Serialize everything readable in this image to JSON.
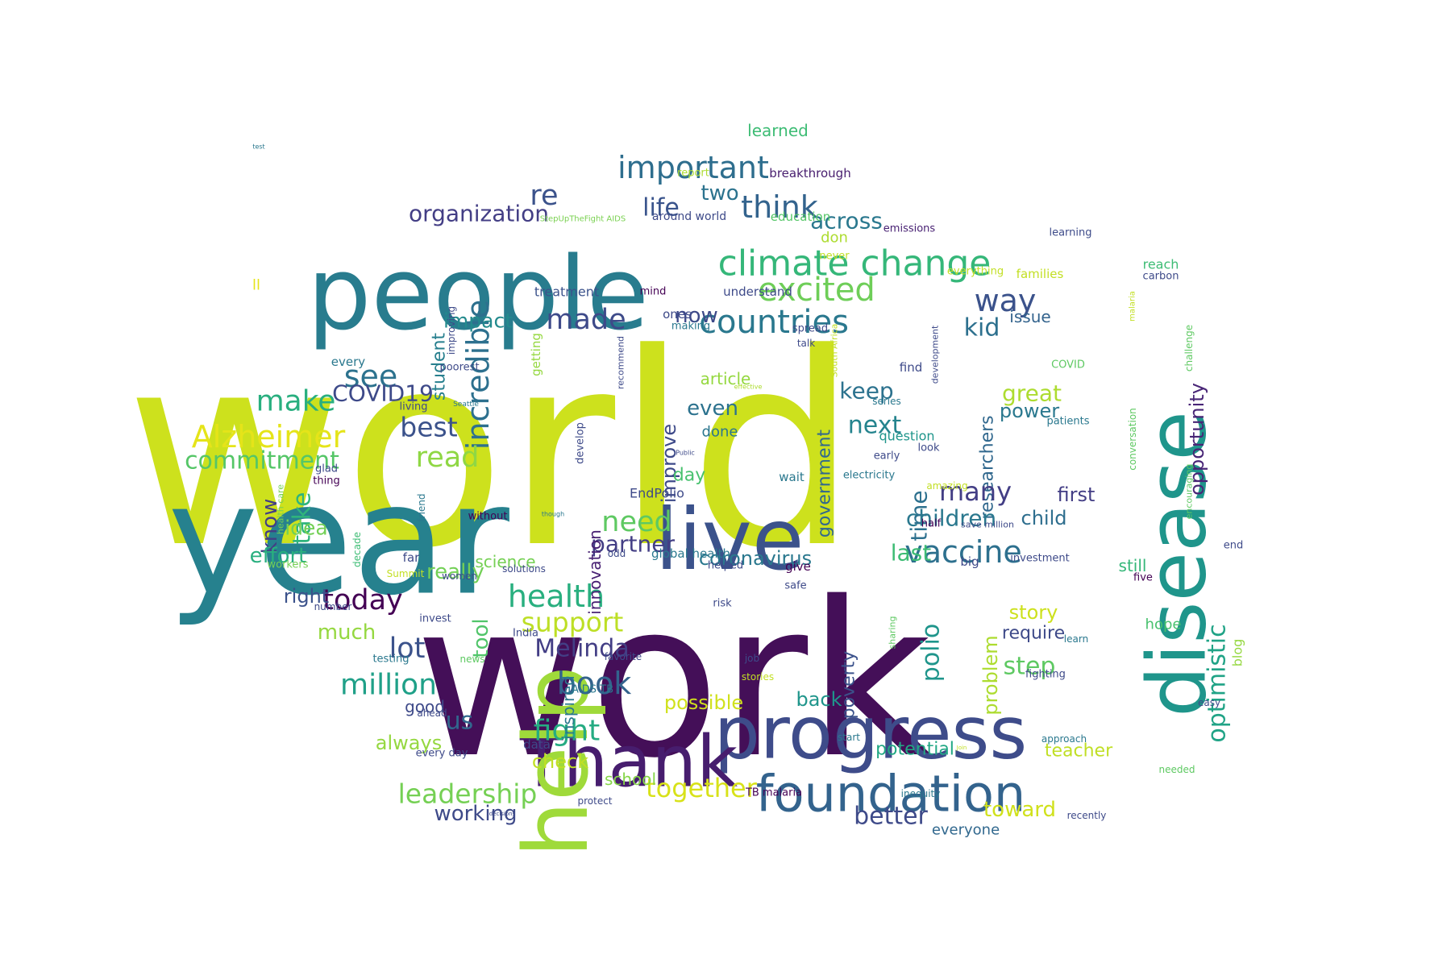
{
  "words": [
    {
      "text": "world",
      "color": "#cde11d"
    },
    {
      "text": "work",
      "color": "#440f58"
    },
    {
      "text": "year",
      "color": "#26818e"
    },
    {
      "text": "people",
      "color": "#287c8e"
    },
    {
      "text": "disease",
      "color": "#1f958b"
    },
    {
      "text": "live",
      "color": "#3b528b"
    },
    {
      "text": "progress",
      "color": "#3e4c8a"
    },
    {
      "text": "Thank",
      "color": "#471d6e"
    },
    {
      "text": "help",
      "color": "#9fda3a"
    },
    {
      "text": "foundation",
      "color": "#33638d"
    },
    {
      "text": "climate change",
      "color": "#35b779"
    },
    {
      "text": "important",
      "color": "#2e6e8e"
    },
    {
      "text": "countries",
      "color": "#2a788e"
    },
    {
      "text": "excited",
      "color": "#6ece58"
    },
    {
      "text": "incredible",
      "color": "#2d708e"
    },
    {
      "text": "think",
      "color": "#33638d"
    },
    {
      "text": "organization",
      "color": "#433e85"
    },
    {
      "text": "life",
      "color": "#3a548c"
    },
    {
      "text": "re",
      "color": "#3b528b"
    },
    {
      "text": "made",
      "color": "#3e4a89"
    },
    {
      "text": "impact",
      "color": "#238a8d"
    },
    {
      "text": "two",
      "color": "#2c738e"
    },
    {
      "text": "across",
      "color": "#2a788e"
    },
    {
      "text": "way",
      "color": "#3b528b"
    },
    {
      "text": "kid",
      "color": "#2d708e"
    },
    {
      "text": "now",
      "color": "#3e4a89"
    },
    {
      "text": "see",
      "color": "#2c728e"
    },
    {
      "text": "make",
      "color": "#29af7f"
    },
    {
      "text": "COVID19",
      "color": "#3e4a89"
    },
    {
      "text": "Alzheimer",
      "color": "#e5e419"
    },
    {
      "text": "commitment",
      "color": "#55c667"
    },
    {
      "text": "best",
      "color": "#3b528b"
    },
    {
      "text": "read",
      "color": "#8fd744"
    },
    {
      "text": "student",
      "color": "#277f8e"
    },
    {
      "text": "government",
      "color": "#31688e"
    },
    {
      "text": "keep",
      "color": "#2c728e"
    },
    {
      "text": "next",
      "color": "#25848e"
    },
    {
      "text": "researchers",
      "color": "#31688e"
    },
    {
      "text": "opportunity",
      "color": "#482576"
    },
    {
      "text": "great",
      "color": "#addc30"
    },
    {
      "text": "power",
      "color": "#2a788e"
    },
    {
      "text": "issue",
      "color": "#33638d"
    },
    {
      "text": "even",
      "color": "#2c728e"
    },
    {
      "text": "article",
      "color": "#95d840"
    },
    {
      "text": "done",
      "color": "#2a768e"
    },
    {
      "text": "improve",
      "color": "#3e4a89"
    },
    {
      "text": "time",
      "color": "#2d708e"
    },
    {
      "text": "many",
      "color": "#433e85"
    },
    {
      "text": "first",
      "color": "#433e85"
    },
    {
      "text": "children",
      "color": "#2a788e"
    },
    {
      "text": "child",
      "color": "#2e6e8e"
    },
    {
      "text": "vaccine",
      "color": "#2d708e"
    },
    {
      "text": "last",
      "color": "#3dbc74"
    },
    {
      "text": "need",
      "color": "#5ec962"
    },
    {
      "text": "partner",
      "color": "#433e85"
    },
    {
      "text": "take",
      "color": "#2fb47c"
    },
    {
      "text": "know",
      "color": "#433e85"
    },
    {
      "text": "idea",
      "color": "#73d056"
    },
    {
      "text": "effort",
      "color": "#29af7f"
    },
    {
      "text": "really",
      "color": "#73d056"
    },
    {
      "text": "science",
      "color": "#75d054"
    },
    {
      "text": "day",
      "color": "#48c16e"
    },
    {
      "text": "coronavirus",
      "color": "#2a788e"
    },
    {
      "text": "health",
      "color": "#29af7f"
    },
    {
      "text": "support",
      "color": "#bddf26"
    },
    {
      "text": "today",
      "color": "#440154"
    },
    {
      "text": "right",
      "color": "#3b528b"
    },
    {
      "text": "lot",
      "color": "#3b528b"
    },
    {
      "text": "tool",
      "color": "#51c56a"
    },
    {
      "text": "Melinda",
      "color": "#433e85"
    },
    {
      "text": "book",
      "color": "#33638d"
    },
    {
      "text": "million",
      "color": "#1fa088"
    },
    {
      "text": "much",
      "color": "#95d840"
    },
    {
      "text": "us",
      "color": "#31688e"
    },
    {
      "text": "fight",
      "color": "#25ab82"
    },
    {
      "text": "always",
      "color": "#95d840"
    },
    {
      "text": "check",
      "color": "#c0df25"
    },
    {
      "text": "leadership",
      "color": "#75d054"
    },
    {
      "text": "working",
      "color": "#3e4a89"
    },
    {
      "text": "together",
      "color": "#d8e219"
    },
    {
      "text": "school",
      "color": "#86d549"
    },
    {
      "text": "better",
      "color": "#3e4a89"
    },
    {
      "text": "toward",
      "color": "#d0e11c"
    },
    {
      "text": "everyone",
      "color": "#31688e"
    },
    {
      "text": "teacher",
      "color": "#c0df25"
    },
    {
      "text": "optimistic",
      "color": "#20a386"
    },
    {
      "text": "polio",
      "color": "#1f958b"
    },
    {
      "text": "problem",
      "color": "#addc30"
    },
    {
      "text": "poverty",
      "color": "#3b528b"
    },
    {
      "text": "story",
      "color": "#cde11d"
    },
    {
      "text": "step",
      "color": "#5ec962"
    },
    {
      "text": "require",
      "color": "#3e4a89"
    },
    {
      "text": "potential",
      "color": "#22a884"
    },
    {
      "text": "possible",
      "color": "#d0e11c"
    },
    {
      "text": "back",
      "color": "#1f958b"
    },
    {
      "text": "good",
      "color": "#3e4a89"
    },
    {
      "text": "innovation",
      "color": "#482173"
    },
    {
      "text": "inspired",
      "color": "#2a788e"
    },
    {
      "text": "still",
      "color": "#35b779"
    },
    {
      "text": "hope",
      "color": "#48c16e"
    },
    {
      "text": "blog",
      "color": "#95d840"
    },
    {
      "text": "learned",
      "color": "#3dbc74"
    },
    {
      "text": "report",
      "color": "#addc30"
    },
    {
      "text": "breakthrough",
      "color": "#471d6e"
    },
    {
      "text": "around world",
      "color": "#3e4a89"
    },
    {
      "text": "education",
      "color": "#55c667"
    },
    {
      "text": "StepUpTheFight AIDS",
      "color": "#7ad151"
    },
    {
      "text": "emissions",
      "color": "#482173"
    },
    {
      "text": "learning",
      "color": "#3e4c8a"
    },
    {
      "text": "don",
      "color": "#addc30"
    },
    {
      "text": "never",
      "color": "#c2df23"
    },
    {
      "text": "everything",
      "color": "#c2df23"
    },
    {
      "text": "families",
      "color": "#c2df23"
    },
    {
      "text": "reach",
      "color": "#3dbc74"
    },
    {
      "text": "carbon",
      "color": "#3e4a89"
    },
    {
      "text": "treatment",
      "color": "#3b528b"
    },
    {
      "text": "mind",
      "color": "#440154"
    },
    {
      "text": "understand",
      "color": "#3e4a89"
    },
    {
      "text": "ones",
      "color": "#3e4a89"
    },
    {
      "text": "making",
      "color": "#2a788e"
    },
    {
      "text": "spread",
      "color": "#3e4a89"
    },
    {
      "text": "talk",
      "color": "#3e4a89"
    },
    {
      "text": "improving",
      "color": "#3e4a89"
    },
    {
      "text": "poorest",
      "color": "#3e4a89"
    },
    {
      "text": "getting",
      "color": "#95d840"
    },
    {
      "text": "recommend",
      "color": "#3e4a89"
    },
    {
      "text": "every",
      "color": "#2a788e"
    },
    {
      "text": "living",
      "color": "#3e4a89"
    },
    {
      "text": "Seattle",
      "color": "#2a788e"
    },
    {
      "text": "develop",
      "color": "#3e4a89"
    },
    {
      "text": "glad",
      "color": "#3e4a89"
    },
    {
      "text": "thing",
      "color": "#440154"
    },
    {
      "text": "effective",
      "color": "#addc30"
    },
    {
      "text": "South Africa",
      "color": "#c2df23"
    },
    {
      "text": "development",
      "color": "#3e4a89"
    },
    {
      "text": "find",
      "color": "#3e4a89"
    },
    {
      "text": "series",
      "color": "#2a788e"
    },
    {
      "text": "question",
      "color": "#1f958b"
    },
    {
      "text": "early",
      "color": "#3e4a89"
    },
    {
      "text": "look",
      "color": "#3e4a89"
    },
    {
      "text": "COVID",
      "color": "#5ec962"
    },
    {
      "text": "patients",
      "color": "#2a788e"
    },
    {
      "text": "malaria",
      "color": "#c2df23"
    },
    {
      "text": "challenge",
      "color": "#5ec962"
    },
    {
      "text": "conversation",
      "color": "#5ec962"
    },
    {
      "text": "encouraging",
      "color": "#5ec962"
    },
    {
      "text": "Public",
      "color": "#3e4a89"
    },
    {
      "text": "wait",
      "color": "#2a788e"
    },
    {
      "text": "electricity",
      "color": "#2a788e"
    },
    {
      "text": "amazing",
      "color": "#c2df23"
    },
    {
      "text": "EndPolio",
      "color": "#3e4a89"
    },
    {
      "text": "though",
      "color": "#2a788e"
    },
    {
      "text": "without",
      "color": "#440154"
    },
    {
      "text": "friend",
      "color": "#2a788e"
    },
    {
      "text": "health care",
      "color": "#75d054"
    },
    {
      "text": "decade",
      "color": "#3dbc74"
    },
    {
      "text": "workers",
      "color": "#75d054"
    },
    {
      "text": "far",
      "color": "#3e4a89"
    },
    {
      "text": "Summit",
      "color": "#c2df23"
    },
    {
      "text": "women",
      "color": "#3e4a89"
    },
    {
      "text": "solutions",
      "color": "#3e4a89"
    },
    {
      "text": "odd",
      "color": "#3e4a89"
    },
    {
      "text": "global health",
      "color": "#2a788e"
    },
    {
      "text": "give",
      "color": "#440154"
    },
    {
      "text": "helped",
      "color": "#3e4a89"
    },
    {
      "text": "safe",
      "color": "#3e4a89"
    },
    {
      "text": "half",
      "color": "#440154"
    },
    {
      "text": "save million",
      "color": "#3e4a89"
    },
    {
      "text": "big",
      "color": "#3e4a89"
    },
    {
      "text": "investment",
      "color": "#3e4a89"
    },
    {
      "text": "five",
      "color": "#440154"
    },
    {
      "text": "end",
      "color": "#3e4a89"
    },
    {
      "text": "number",
      "color": "#3e4a89"
    },
    {
      "text": "invest",
      "color": "#3e4a89"
    },
    {
      "text": "India",
      "color": "#3e4a89"
    },
    {
      "text": "testing",
      "color": "#2a788e"
    },
    {
      "text": "news",
      "color": "#5ec962"
    },
    {
      "text": "favorite",
      "color": "#3e4a89"
    },
    {
      "text": "risk",
      "color": "#3e4a89"
    },
    {
      "text": "sharing",
      "color": "#5ec962"
    },
    {
      "text": "job",
      "color": "#3e4a89"
    },
    {
      "text": "stories",
      "color": "#c2df23"
    },
    {
      "text": "learn",
      "color": "#2a788e"
    },
    {
      "text": "fighting",
      "color": "#3e4a89"
    },
    {
      "text": "AIDS TB",
      "color": "#2a788e"
    },
    {
      "text": "ahead",
      "color": "#3e4a89"
    },
    {
      "text": "data",
      "color": "#3e4a89"
    },
    {
      "text": "every day",
      "color": "#3e4a89"
    },
    {
      "text": "start",
      "color": "#2a788e"
    },
    {
      "text": "Join",
      "color": "#c2df23"
    },
    {
      "text": "approach",
      "color": "#2a788e"
    },
    {
      "text": "easy",
      "color": "#3e4a89"
    },
    {
      "text": "needed",
      "color": "#5ec962"
    },
    {
      "text": "protect",
      "color": "#3e4a89"
    },
    {
      "text": "TB malaria",
      "color": "#440154"
    },
    {
      "text": "inequity",
      "color": "#2a788e"
    },
    {
      "text": "recently",
      "color": "#3e4a89"
    },
    {
      "text": "decisions",
      "color": "#3e4a89"
    },
    {
      "text": "test",
      "color": "#2a788e"
    },
    {
      "text": "ll",
      "color": "#e5e419"
    }
  ]
}
